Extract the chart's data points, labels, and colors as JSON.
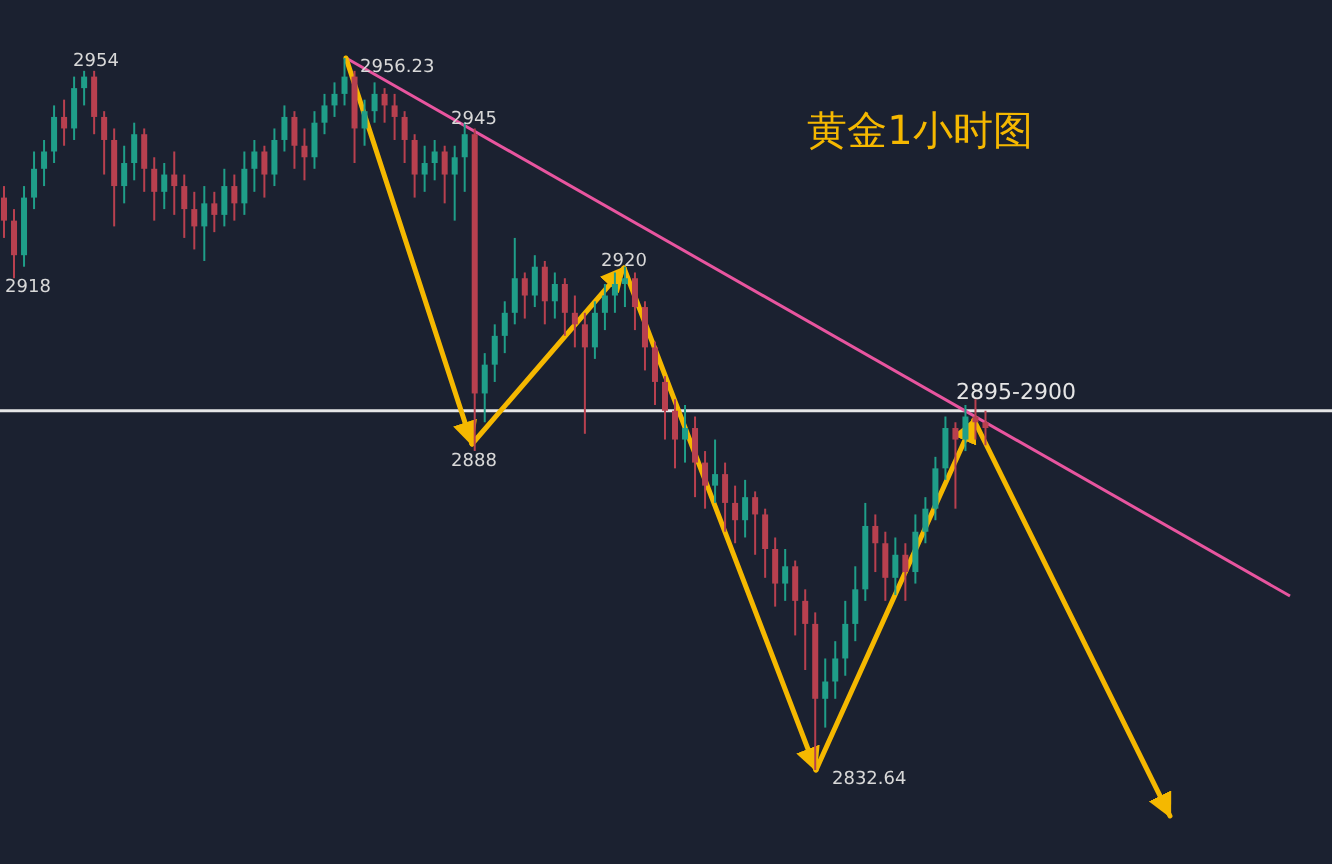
{
  "chart_data": {
    "type": "candlestick",
    "title": "黄金1小时图",
    "categories": [
      null,
      null,
      null,
      null,
      null,
      null,
      null,
      null,
      null,
      null,
      null,
      null,
      null,
      null,
      null,
      null,
      null,
      null,
      null,
      null,
      null,
      null,
      null,
      null,
      null,
      null,
      null,
      null,
      null,
      null,
      null,
      null,
      null,
      null,
      null,
      null,
      null,
      null,
      null,
      null,
      null,
      null,
      null,
      null,
      null,
      null,
      null,
      null,
      null,
      null,
      null,
      null,
      null,
      null,
      null,
      null,
      null,
      null,
      null,
      null,
      null,
      null,
      null,
      null,
      null,
      null,
      null,
      null,
      null,
      null,
      null,
      null,
      null,
      null,
      null,
      null,
      null,
      null,
      null,
      null,
      null,
      null,
      null,
      null,
      null,
      null,
      null,
      null,
      null,
      null,
      null,
      null,
      null,
      null,
      null,
      null,
      null,
      null,
      null
    ],
    "ohlc": [
      [
        2932,
        2934,
        2925,
        2928
      ],
      [
        2928,
        2930,
        2918,
        2922
      ],
      [
        2922,
        2934,
        2920,
        2932
      ],
      [
        2932,
        2940,
        2930,
        2937
      ],
      [
        2937,
        2942,
        2934,
        2940
      ],
      [
        2940,
        2948,
        2938,
        2946
      ],
      [
        2946,
        2949,
        2941,
        2944
      ],
      [
        2944,
        2953,
        2942,
        2951
      ],
      [
        2951,
        2954,
        2948,
        2953
      ],
      [
        2953,
        2954,
        2943,
        2946
      ],
      [
        2946,
        2947,
        2936,
        2942
      ],
      [
        2942,
        2944,
        2927,
        2934
      ],
      [
        2934,
        2941,
        2931,
        2938
      ],
      [
        2938,
        2945,
        2935,
        2943
      ],
      [
        2943,
        2944,
        2933,
        2937
      ],
      [
        2937,
        2939,
        2928,
        2933
      ],
      [
        2933,
        2938,
        2930,
        2936
      ],
      [
        2936,
        2940,
        2929,
        2934
      ],
      [
        2934,
        2936,
        2925,
        2930
      ],
      [
        2930,
        2933,
        2923,
        2927
      ],
      [
        2927,
        2934,
        2921,
        2931
      ],
      [
        2931,
        2933,
        2926,
        2929
      ],
      [
        2929,
        2937,
        2927,
        2934
      ],
      [
        2934,
        2936,
        2928,
        2931
      ],
      [
        2931,
        2940,
        2929,
        2937
      ],
      [
        2937,
        2942,
        2933,
        2940
      ],
      [
        2940,
        2941,
        2932,
        2936
      ],
      [
        2936,
        2944,
        2934,
        2942
      ],
      [
        2942,
        2948,
        2940,
        2946
      ],
      [
        2946,
        2947,
        2937,
        2941
      ],
      [
        2941,
        2944,
        2935,
        2939
      ],
      [
        2939,
        2947,
        2937,
        2945
      ],
      [
        2945,
        2950,
        2943,
        2948
      ],
      [
        2948,
        2952,
        2946,
        2950
      ],
      [
        2950,
        2956.23,
        2948,
        2953
      ],
      [
        2953,
        2954,
        2938,
        2944
      ],
      [
        2944,
        2949,
        2941,
        2947
      ],
      [
        2947,
        2952,
        2945,
        2950
      ],
      [
        2950,
        2951,
        2945,
        2948
      ],
      [
        2948,
        2950,
        2942,
        2946
      ],
      [
        2946,
        2947,
        2938,
        2942
      ],
      [
        2942,
        2943,
        2932,
        2936
      ],
      [
        2936,
        2941,
        2933,
        2938
      ],
      [
        2938,
        2942,
        2935,
        2940
      ],
      [
        2940,
        2941,
        2931,
        2936
      ],
      [
        2936,
        2941,
        2928,
        2939
      ],
      [
        2939,
        2945,
        2933,
        2943
      ],
      [
        2943,
        2944,
        2888,
        2898
      ],
      [
        2898,
        2905,
        2893,
        2903
      ],
      [
        2903,
        2910,
        2900,
        2908
      ],
      [
        2908,
        2914,
        2905,
        2912
      ],
      [
        2912,
        2925,
        2910,
        2918
      ],
      [
        2918,
        2919,
        2911,
        2915
      ],
      [
        2915,
        2922,
        2913,
        2920
      ],
      [
        2920,
        2921,
        2910,
        2914
      ],
      [
        2914,
        2919,
        2911,
        2917
      ],
      [
        2917,
        2918,
        2908,
        2912
      ],
      [
        2912,
        2915,
        2906,
        2910
      ],
      [
        2910,
        2912,
        2891,
        2906
      ],
      [
        2906,
        2914,
        2904,
        2912
      ],
      [
        2912,
        2917,
        2909,
        2915
      ],
      [
        2915,
        2919,
        2912,
        2917
      ],
      [
        2917,
        2920,
        2913,
        2918
      ],
      [
        2918,
        2919,
        2909,
        2913
      ],
      [
        2913,
        2914,
        2902,
        2906
      ],
      [
        2906,
        2907,
        2896,
        2900
      ],
      [
        2900,
        2901,
        2890,
        2895
      ],
      [
        2895,
        2897,
        2885,
        2890
      ],
      [
        2890,
        2896,
        2886,
        2892
      ],
      [
        2892,
        2894,
        2880,
        2886
      ],
      [
        2886,
        2888,
        2878,
        2882
      ],
      [
        2882,
        2890,
        2879,
        2884
      ],
      [
        2884,
        2886,
        2874,
        2879
      ],
      [
        2879,
        2882,
        2872,
        2876
      ],
      [
        2876,
        2883,
        2873,
        2880
      ],
      [
        2880,
        2881,
        2870,
        2877
      ],
      [
        2877,
        2878,
        2866,
        2871
      ],
      [
        2871,
        2873,
        2861,
        2865
      ],
      [
        2865,
        2871,
        2862,
        2868
      ],
      [
        2868,
        2869,
        2856,
        2862
      ],
      [
        2862,
        2864,
        2850,
        2858
      ],
      [
        2858,
        2860,
        2832.64,
        2845
      ],
      [
        2845,
        2852,
        2840,
        2848
      ],
      [
        2848,
        2855,
        2845,
        2852
      ],
      [
        2852,
        2862,
        2849,
        2858
      ],
      [
        2858,
        2868,
        2855,
        2864
      ],
      [
        2864,
        2879,
        2862,
        2875
      ],
      [
        2875,
        2877,
        2867,
        2872
      ],
      [
        2872,
        2874,
        2862,
        2866
      ],
      [
        2866,
        2873,
        2863,
        2870
      ],
      [
        2870,
        2872,
        2862,
        2867
      ],
      [
        2867,
        2877,
        2865,
        2874
      ],
      [
        2874,
        2880,
        2872,
        2878
      ],
      [
        2878,
        2887,
        2876,
        2885
      ],
      [
        2885,
        2894,
        2883,
        2892
      ],
      [
        2892,
        2893,
        2878,
        2890
      ],
      [
        2890,
        2896,
        2888,
        2894
      ],
      [
        2894,
        2897,
        2890,
        2893
      ],
      [
        2893,
        2895,
        2889,
        2892
      ]
    ],
    "ref_lines": [
      {
        "axis": "y",
        "value": 2895,
        "label": "2895-2900",
        "color": "#e6e6e6"
      }
    ],
    "annotations": [
      "2954",
      "2918",
      "2956.23",
      "2945",
      "2888",
      "2920",
      "2832.64"
    ]
  }
}
